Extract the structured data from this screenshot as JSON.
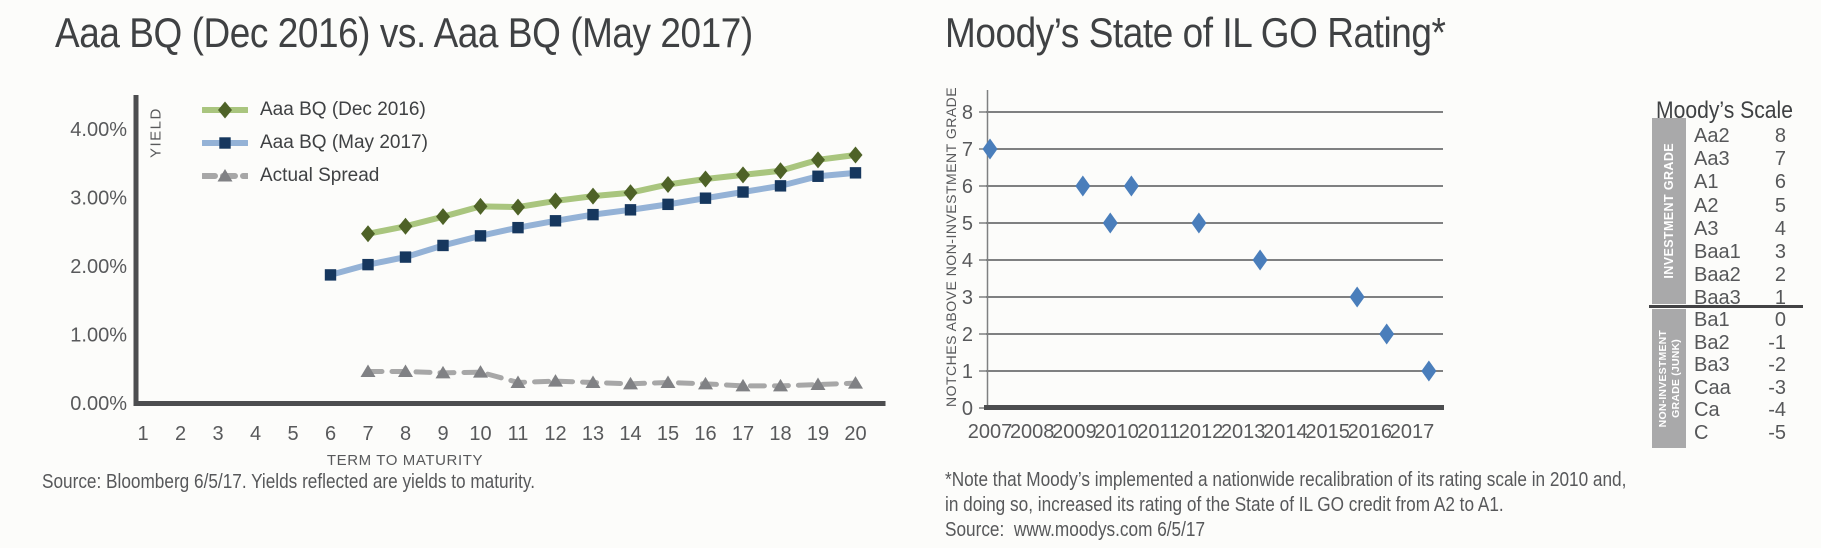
{
  "chart_data": [
    {
      "type": "line",
      "title": "Aaa BQ (Dec 2016) vs. Aaa BQ (May 2017)",
      "xlabel": "TERM TO MATURITY",
      "ylabel": "YIELD",
      "source": "Source: Bloomberg 6/5/17. Yields reflected are yields to maturity.",
      "x_ticks": [
        1,
        2,
        3,
        4,
        5,
        6,
        7,
        8,
        9,
        10,
        11,
        12,
        13,
        14,
        15,
        16,
        17,
        18,
        19,
        20
      ],
      "y_tick_labels": [
        "0.00%",
        "1.00%",
        "2.00%",
        "3.00%",
        "4.00%"
      ],
      "xlim": [
        1,
        20
      ],
      "ylim": [
        0,
        4
      ],
      "grid": false,
      "legend_position": "top-left",
      "series": [
        {
          "name": "Aaa BQ (Dec 2016)",
          "marker": "diamond",
          "line_color": "#a9c57e",
          "marker_color": "#4e6227",
          "dash": false,
          "x": [
            7,
            8,
            9,
            10,
            11,
            12,
            13,
            14,
            15,
            16,
            17,
            18,
            19,
            20
          ],
          "y": [
            2.47,
            2.58,
            2.72,
            2.87,
            2.86,
            2.95,
            3.02,
            3.07,
            3.19,
            3.27,
            3.33,
            3.39,
            3.55,
            3.62
          ]
        },
        {
          "name": "Aaa BQ (May 2017)",
          "marker": "square",
          "line_color": "#94b2d6",
          "marker_color": "#16375e",
          "dash": false,
          "x": [
            6,
            7,
            8,
            9,
            10,
            11,
            12,
            13,
            14,
            15,
            16,
            17,
            18,
            19,
            20
          ],
          "y": [
            1.87,
            2.02,
            2.13,
            2.3,
            2.44,
            2.56,
            2.66,
            2.75,
            2.82,
            2.9,
            2.99,
            3.08,
            3.17,
            3.31,
            3.36
          ]
        },
        {
          "name": "Actual Spread",
          "marker": "triangle",
          "line_color": "#a7a7a7",
          "marker_color": "#808184",
          "dash": true,
          "x": [
            7,
            8,
            9,
            10,
            11,
            12,
            13,
            14,
            15,
            16,
            17,
            18,
            19,
            20
          ],
          "y": [
            0.46,
            0.46,
            0.44,
            0.45,
            0.3,
            0.32,
            0.3,
            0.28,
            0.3,
            0.28,
            0.25,
            0.25,
            0.27,
            0.29
          ]
        }
      ]
    },
    {
      "type": "scatter",
      "title": "Moody’s State of IL GO Rating*",
      "xlabel": "",
      "ylabel": "NOTCHES ABOVE NON-INVESTMENT GRADE",
      "x_ticks": [
        2007,
        2008,
        2009,
        2010,
        2011,
        2012,
        2013,
        2014,
        2015,
        2016,
        2017
      ],
      "y_ticks": [
        0,
        1,
        2,
        3,
        4,
        5,
        6,
        7,
        8
      ],
      "xlim": [
        2007,
        2017.5
      ],
      "ylim": [
        0,
        8
      ],
      "grid": true,
      "marker": "diamond",
      "marker_color": "#4a7ebb",
      "points": [
        [
          2007.0,
          7
        ],
        [
          2009.2,
          6
        ],
        [
          2009.85,
          5
        ],
        [
          2010.35,
          6
        ],
        [
          2011.95,
          5
        ],
        [
          2013.4,
          4
        ],
        [
          2015.7,
          3
        ],
        [
          2016.4,
          2
        ],
        [
          2017.4,
          1
        ]
      ],
      "footnote_lines": [
        "*Note that Moody’s implemented a nationwide recalibration of its rating scale in 2010 and,",
        "in doing so, increased its rating of the State of IL GO credit from A2 to A1."
      ],
      "source": "Source:  www.moodys.com 6/5/17"
    }
  ],
  "moodys_scale": {
    "title": "Moody’s Scale",
    "investment_label": "INVESTMENT GRADE",
    "junk_label_line1": "NON-INVESTMENT",
    "junk_label_line2": "GRADE (JUNK)",
    "investment_rows": [
      {
        "rating": "Aa2",
        "notches": "8"
      },
      {
        "rating": "Aa3",
        "notches": "7"
      },
      {
        "rating": "A1",
        "notches": "6"
      },
      {
        "rating": "A2",
        "notches": "5"
      },
      {
        "rating": "A3",
        "notches": "4"
      },
      {
        "rating": "Baa1",
        "notches": "3"
      },
      {
        "rating": "Baa2",
        "notches": "2"
      },
      {
        "rating": "Baa3",
        "notches": "1"
      }
    ],
    "junk_rows": [
      {
        "rating": "Ba1",
        "notches": "0"
      },
      {
        "rating": "Ba2",
        "notches": "-1"
      },
      {
        "rating": "Ba3",
        "notches": "-2"
      },
      {
        "rating": "Caa",
        "notches": "-3"
      },
      {
        "rating": "Ca",
        "notches": "-4"
      },
      {
        "rating": "C",
        "notches": "-5"
      }
    ]
  },
  "colors": {
    "axis": "#4c4d4f",
    "gridline": "#7f8081",
    "tick_text": "#58595b",
    "title_text": "#3f4143",
    "band_gray": "#a9a9aa"
  }
}
